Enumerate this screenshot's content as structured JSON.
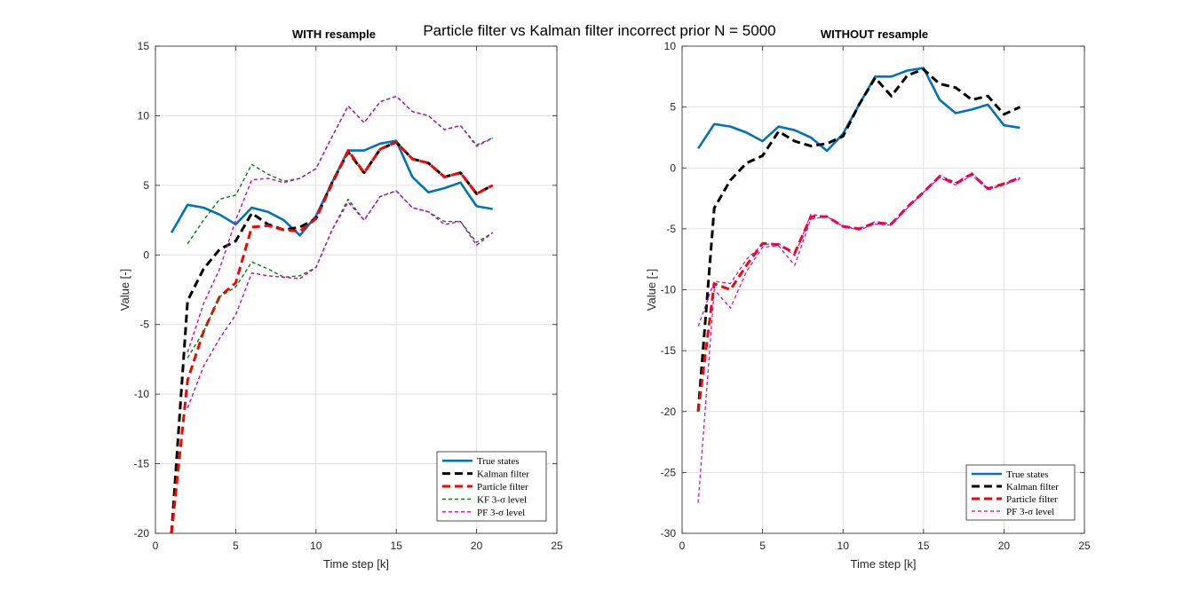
{
  "figure": {
    "title": "Particle filter vs Kalman filter incorrect prior N = 5000"
  },
  "chart_data": [
    {
      "type": "line",
      "title": "WITH resample",
      "xlabel": "Time step [k]",
      "ylabel": "Value [-]",
      "xlim": [
        0,
        25
      ],
      "ylim": [
        -20,
        15
      ],
      "xticks": [
        0,
        5,
        10,
        15,
        20,
        25
      ],
      "yticks": [
        -20,
        -15,
        -10,
        -5,
        0,
        5,
        10,
        15
      ],
      "grid": true,
      "legend_position": "bottom-right",
      "series": [
        {
          "name": "True states",
          "color": "#0072BD",
          "style": "solid",
          "width": 2.6,
          "x": [
            1,
            2,
            3,
            4,
            5,
            6,
            7,
            8,
            9,
            10,
            11,
            12,
            13,
            14,
            15,
            16,
            17,
            18,
            19,
            20,
            21
          ],
          "y": [
            1.6,
            3.6,
            3.4,
            2.9,
            2.2,
            3.4,
            3.1,
            2.5,
            1.4,
            2.8,
            5.2,
            7.5,
            7.5,
            8.0,
            8.2,
            5.6,
            4.5,
            4.8,
            5.2,
            3.5,
            3.3
          ]
        },
        {
          "name": "Kalman filter",
          "color": "#000000",
          "style": "dash",
          "width": 3,
          "x": [
            1,
            2,
            3,
            4,
            5,
            6,
            7,
            8,
            9,
            10,
            11,
            12,
            13,
            14,
            15,
            16,
            17,
            18,
            19,
            20,
            21
          ],
          "y": [
            -20,
            -3.3,
            -1.0,
            0.4,
            1.0,
            3.0,
            2.2,
            1.8,
            2.0,
            2.6,
            5.2,
            7.4,
            5.9,
            7.6,
            8.1,
            6.9,
            6.6,
            5.6,
            5.9,
            4.4,
            5.0
          ]
        },
        {
          "name": "Particle filter",
          "color": "#FF0000",
          "style": "dash",
          "width": 3,
          "x": [
            1,
            2,
            3,
            4,
            5,
            6,
            7,
            8,
            9,
            10,
            11,
            12,
            13,
            14,
            15,
            16,
            17,
            18,
            19,
            20,
            21
          ],
          "y": [
            -20,
            -9.0,
            -5.5,
            -3.0,
            -2.0,
            2.0,
            2.1,
            1.8,
            1.7,
            2.6,
            5.1,
            7.5,
            5.9,
            7.6,
            8.1,
            6.9,
            6.6,
            5.6,
            5.9,
            4.4,
            5.0
          ]
        },
        {
          "name": "KF 3-σ level",
          "color": "#008000",
          "style": "shortdash",
          "width": 1.4,
          "x": [
            2,
            3,
            4,
            5,
            6,
            7,
            8,
            9,
            10,
            11,
            12,
            13,
            14,
            15,
            16,
            17,
            18,
            19,
            20,
            21
          ],
          "y": [
            0.8,
            2.5,
            4.0,
            4.3,
            6.5,
            5.8,
            5.3,
            5.5,
            6.2,
            8.5,
            10.7,
            9.5,
            11.0,
            11.4,
            10.3,
            10.0,
            9.0,
            9.3,
            7.9,
            8.4
          ]
        },
        {
          "name": "",
          "color": "#008000",
          "style": "shortdash",
          "width": 1.4,
          "x": [
            2,
            3,
            4,
            5,
            6,
            7,
            8,
            9,
            10,
            11,
            12,
            13,
            14,
            15,
            16,
            17,
            18,
            19,
            20,
            21
          ],
          "y": [
            -7.4,
            -5.5,
            -3.0,
            -2.3,
            -0.5,
            -1.0,
            -1.6,
            -1.5,
            -0.9,
            1.8,
            4.0,
            2.5,
            4.2,
            4.6,
            3.4,
            3.1,
            2.4,
            2.4,
            0.9,
            1.6
          ]
        },
        {
          "name": "PF 3-σ level",
          "color": "#CC00CC",
          "style": "shortdash",
          "width": 1.4,
          "x": [
            2,
            3,
            4,
            5,
            6,
            7,
            8,
            9,
            10,
            11,
            12,
            13,
            14,
            15,
            16,
            17,
            18,
            19,
            20,
            21
          ],
          "y": [
            -7.0,
            -3.5,
            -1.0,
            2.5,
            5.4,
            5.5,
            5.2,
            5.5,
            6.2,
            8.5,
            10.7,
            9.5,
            11.0,
            11.4,
            10.3,
            10.0,
            9.0,
            9.3,
            7.8,
            8.4
          ]
        },
        {
          "name": "",
          "color": "#CC00CC",
          "style": "shortdash",
          "width": 1.4,
          "x": [
            2,
            3,
            4,
            5,
            6,
            7,
            8,
            9,
            10,
            11,
            12,
            13,
            14,
            15,
            16,
            17,
            18,
            19,
            20,
            21
          ],
          "y": [
            -11.0,
            -8.0,
            -6.0,
            -4.3,
            -1.3,
            -1.5,
            -1.6,
            -1.7,
            -0.9,
            1.8,
            3.8,
            2.5,
            4.2,
            4.6,
            3.4,
            3.1,
            2.2,
            2.4,
            0.7,
            1.6
          ]
        }
      ]
    },
    {
      "type": "line",
      "title": "WITHOUT resample",
      "xlabel": "Time step [k]",
      "ylabel": "Value [-]",
      "xlim": [
        0,
        25
      ],
      "ylim": [
        -30,
        10
      ],
      "xticks": [
        0,
        5,
        10,
        15,
        20,
        25
      ],
      "yticks": [
        -30,
        -25,
        -20,
        -15,
        -10,
        -5,
        0,
        5,
        10
      ],
      "grid": true,
      "legend_position": "bottom-right",
      "series": [
        {
          "name": "True states",
          "color": "#0072BD",
          "style": "solid",
          "width": 2.6,
          "x": [
            1,
            2,
            3,
            4,
            5,
            6,
            7,
            8,
            9,
            10,
            11,
            12,
            13,
            14,
            15,
            16,
            17,
            18,
            19,
            20,
            21
          ],
          "y": [
            1.6,
            3.6,
            3.4,
            2.9,
            2.2,
            3.4,
            3.1,
            2.5,
            1.4,
            2.8,
            5.2,
            7.5,
            7.5,
            8.0,
            8.2,
            5.6,
            4.5,
            4.8,
            5.2,
            3.5,
            3.3
          ]
        },
        {
          "name": "Kalman filter",
          "color": "#000000",
          "style": "dash",
          "width": 3,
          "x": [
            1,
            2,
            3,
            4,
            5,
            6,
            7,
            8,
            9,
            10,
            11,
            12,
            13,
            14,
            15,
            16,
            17,
            18,
            19,
            20,
            21
          ],
          "y": [
            -20,
            -3.3,
            -1.0,
            0.4,
            1.0,
            3.0,
            2.2,
            1.8,
            2.0,
            2.6,
            5.2,
            7.4,
            5.9,
            7.6,
            8.1,
            6.9,
            6.6,
            5.6,
            5.9,
            4.4,
            5.0
          ]
        },
        {
          "name": "Particle filter",
          "color": "#FF0000",
          "style": "dash",
          "width": 3,
          "x": [
            1,
            2,
            3,
            4,
            5,
            6,
            7,
            8,
            9,
            10,
            11,
            12,
            13,
            14,
            15,
            16,
            17,
            18,
            19,
            20,
            21
          ],
          "y": [
            -20,
            -9.5,
            -10.0,
            -8.0,
            -6.2,
            -6.3,
            -7.0,
            -4.0,
            -4.0,
            -4.8,
            -5.0,
            -4.5,
            -4.6,
            -3.2,
            -2.0,
            -0.7,
            -1.3,
            -0.5,
            -1.7,
            -1.3,
            -0.8
          ]
        },
        {
          "name": "PF 3-σ level",
          "color": "#CC00CC",
          "style": "shortdash",
          "width": 1.2,
          "x": [
            1,
            2,
            3,
            4,
            5,
            6,
            7,
            8,
            9,
            10,
            11,
            12,
            13,
            14,
            15,
            16,
            17,
            18,
            19,
            20,
            21
          ],
          "y": [
            -13,
            -9.3,
            -9.5,
            -7.5,
            -6.3,
            -6.2,
            -7.2,
            -3.8,
            -4.0,
            -4.8,
            -5.0,
            -4.4,
            -4.6,
            -3.2,
            -2.0,
            -0.6,
            -1.2,
            -0.4,
            -1.7,
            -1.3,
            -0.8
          ]
        },
        {
          "name": "",
          "color": "#CC00CC",
          "style": "shortdash",
          "width": 1.2,
          "x": [
            1,
            2,
            3,
            4,
            5,
            6,
            7,
            8,
            9,
            10,
            11,
            12,
            13,
            14,
            15,
            16,
            17,
            18,
            19,
            20,
            21
          ],
          "y": [
            -27.5,
            -10.0,
            -11.5,
            -8.5,
            -6.5,
            -6.4,
            -8.0,
            -4.2,
            -4.0,
            -4.8,
            -5.1,
            -4.6,
            -4.7,
            -3.3,
            -2.0,
            -0.8,
            -1.4,
            -0.6,
            -1.8,
            -1.4,
            -0.9
          ]
        }
      ]
    }
  ]
}
